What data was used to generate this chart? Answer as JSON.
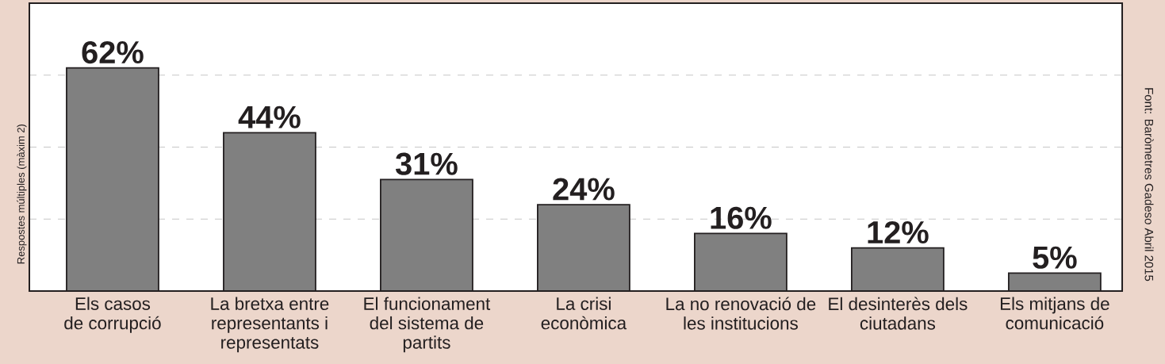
{
  "chart_data": {
    "type": "bar",
    "ylabel": "Respostes múltiples (màxim 2)",
    "categories": [
      "Els casos de corrupció",
      "La bretxa entre representants i representats",
      "El funcionament del sistema de partits",
      "La crisi econòmica",
      "La no renovació de les institucions",
      "El desinterès dels ciutadans",
      "Els mitjans de comunicació"
    ],
    "values": [
      62,
      44,
      31,
      24,
      16,
      12,
      5
    ],
    "value_labels": [
      "62%",
      "44%",
      "31%",
      "24%",
      "16%",
      "12%",
      "5%"
    ],
    "color": "#808080",
    "ylim": [
      0,
      80
    ],
    "yticks": [
      {
        "value": 20,
        "label": null
      },
      {
        "value": 40,
        "label": null
      },
      {
        "value": 60,
        "label": null
      }
    ],
    "grid": "y",
    "tick_labels": "x",
    "annotations": [
      "Font: Baròmetres Gadeso Abril 2015"
    ]
  }
}
